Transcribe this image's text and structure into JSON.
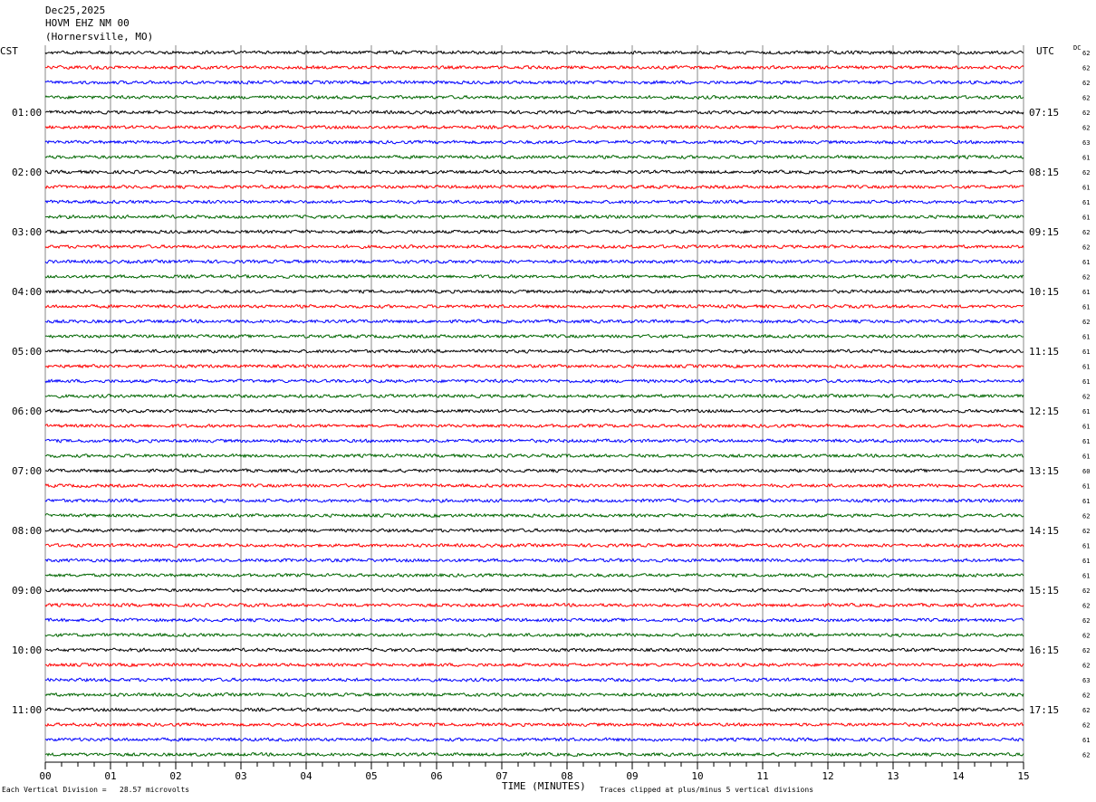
{
  "header": {
    "date": "Dec25,2025",
    "station": "HOVM EHZ NM 00",
    "location": "(Hornersville, MO)"
  },
  "chart_data": {
    "type": "line",
    "subtype": "helicorder",
    "left_timezone": "CST",
    "right_timezone": "UTC",
    "dc_header": "DC",
    "xlabel": "TIME (MINUTES)",
    "xlim": [
      0,
      15
    ],
    "x_ticks": [
      "00",
      "01",
      "02",
      "03",
      "04",
      "05",
      "06",
      "07",
      "08",
      "09",
      "10",
      "11",
      "12",
      "13",
      "14",
      "15"
    ],
    "left_hour_labels": [
      "01:00",
      "02:00",
      "03:00",
      "04:00",
      "05:00",
      "06:00",
      "07:00",
      "08:00",
      "09:00",
      "10:00",
      "11:00"
    ],
    "right_hour_labels": [
      "07:15",
      "08:15",
      "09:15",
      "10:15",
      "11:15",
      "12:15",
      "13:15",
      "14:15",
      "15:15",
      "16:15",
      "17:15"
    ],
    "dc_offsets": [
      "62",
      "62",
      "62",
      "62",
      "62",
      "62",
      "63",
      "61",
      "62",
      "61",
      "61",
      "61",
      "62",
      "62",
      "61",
      "62",
      "61",
      "61",
      "62",
      "61",
      "61",
      "61",
      "61",
      "62",
      "61",
      "61",
      "61",
      "61",
      "60",
      "61",
      "61",
      "62",
      "62",
      "61",
      "61",
      "61",
      "62",
      "62",
      "62",
      "62",
      "62",
      "62",
      "63",
      "62",
      "62",
      "62",
      "61",
      "62"
    ],
    "trace_colors": [
      "#000000",
      "#ff0000",
      "#0000ff",
      "#006600"
    ],
    "grid": true,
    "notes": {
      "scale": "Each Vertical Division =   28.57 microvolts",
      "clip": "Traces clipped at plus/minus 5 vertical divisions"
    }
  }
}
